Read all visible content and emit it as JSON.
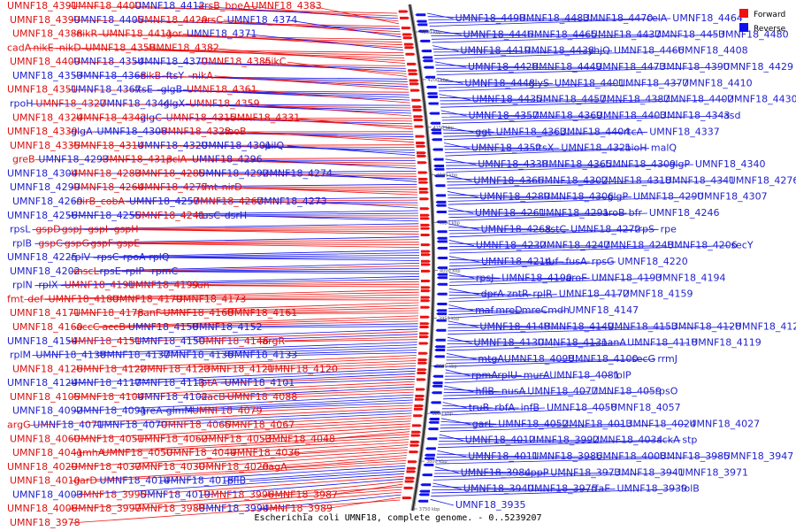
{
  "caption": "Escherichia coli UMNF18, complete genome. - 0..5239207",
  "legend": {
    "forward_label": "Forward",
    "reverse_label": "Reverse",
    "forward_color": "#ee1111",
    "reverse_color": "#1111ee"
  },
  "ticks": [
    "4250 kbp",
    "4200 kbp",
    "4150 kbp",
    "4100 kbp",
    "4050 kbp",
    "4000 kbp",
    "3950 kbp",
    "3900 kbp",
    "3850 kbp",
    "3800 kbp",
    "3750 kbp"
  ],
  "left_labels": [
    {
      "t": "UMNF18_4391",
      "s": "f"
    },
    {
      "t": "UMNF18_4400",
      "s": "f"
    },
    {
      "t": "UMNF18_4412",
      "s": "r"
    },
    {
      "t": "arsB_bpeA",
      "s": "f"
    },
    {
      "t": "UMNF18_4383",
      "s": "f"
    },
    {
      "t": "UMNF18_4399",
      "s": "f"
    },
    {
      "t": "UMNF18_4405",
      "s": "r"
    },
    {
      "t": "UMNF18_4420",
      "s": "f"
    },
    {
      "t": "arsC",
      "s": "f"
    },
    {
      "t": "UMNF18_4374",
      "s": "r"
    },
    {
      "t": "UMNF18_4388",
      "s": "f"
    },
    {
      "t": "nikR",
      "s": "f"
    },
    {
      "t": "UMNF18_4411",
      "s": "f"
    },
    {
      "t": "gor",
      "s": "f"
    },
    {
      "t": "UMNF18_4371",
      "s": "r"
    },
    {
      "t": "cadA",
      "s": "f"
    },
    {
      "t": "nikE",
      "s": "f"
    },
    {
      "t": "nikD",
      "s": "f"
    },
    {
      "t": "UMNF18_4358",
      "s": "f"
    },
    {
      "t": "UMNF18_4382",
      "s": "f"
    },
    {
      "t": "UMNF18_4409",
      "s": "f"
    },
    {
      "t": "UMNF18_4354",
      "s": "r"
    },
    {
      "t": "UMNF18_4370",
      "s": "r"
    },
    {
      "t": "UMNF18_4385",
      "s": "f"
    },
    {
      "t": "nikC",
      "s": "f"
    },
    {
      "t": "UMNF18_4353",
      "s": "r"
    },
    {
      "t": "UMNF18_4368",
      "s": "r"
    },
    {
      "t": "nikB",
      "s": "f"
    },
    {
      "t": "ftsY",
      "s": "r"
    },
    {
      "t": "nikA",
      "s": "f"
    },
    {
      "t": "UMNF18_4351",
      "s": "f"
    },
    {
      "t": "UMNF18_4367",
      "s": "r"
    },
    {
      "t": "ftsE",
      "s": "r"
    },
    {
      "t": "glgB",
      "s": "r"
    },
    {
      "t": "UMNF18_4361",
      "s": "f"
    },
    {
      "t": "rpoH",
      "s": "r"
    },
    {
      "t": "UMNF18_4327",
      "s": "f"
    },
    {
      "t": "UMNF18_4344",
      "s": "r"
    },
    {
      "t": "glgX",
      "s": "r"
    },
    {
      "t": "UMNF18_4359",
      "s": "f"
    },
    {
      "t": "UMNF18_4324",
      "s": "f"
    },
    {
      "t": "UMNF18_4342",
      "s": "f"
    },
    {
      "t": "glgC",
      "s": "r"
    },
    {
      "t": "UMNF18_4315",
      "s": "f"
    },
    {
      "t": "UMNF18_4331",
      "s": "f"
    },
    {
      "t": "UMNF18_4339",
      "s": "f"
    },
    {
      "t": "glgA",
      "s": "r"
    },
    {
      "t": "UMNF18_4308",
      "s": "r"
    },
    {
      "t": "UMNF18_4323",
      "s": "f"
    },
    {
      "t": "feoB",
      "s": "f"
    },
    {
      "t": "UMNF18_4335",
      "s": "f"
    },
    {
      "t": "UMNF18_4314",
      "s": "f"
    },
    {
      "t": "UMNF18_4320",
      "s": "r"
    },
    {
      "t": "UMNF18_4301",
      "s": "r"
    },
    {
      "t": "pilQ",
      "s": "r"
    },
    {
      "t": "greB",
      "s": "f"
    },
    {
      "t": "UMNF18_4293",
      "s": "r"
    },
    {
      "t": "UMNF18_4313",
      "s": "f"
    },
    {
      "t": "pclA",
      "s": "f"
    },
    {
      "t": "UMNF18_4296",
      "s": "r"
    },
    {
      "t": "UMNF18_4304",
      "s": "r"
    },
    {
      "t": "UMNF18_4283",
      "s": "f"
    },
    {
      "t": "UMNF18_4285",
      "s": "f"
    },
    {
      "t": "UMNF18_4292",
      "s": "r"
    },
    {
      "t": "UMNF18_4274",
      "s": "r"
    },
    {
      "t": "UMNF18_4299",
      "s": "r"
    },
    {
      "t": "UMNF18_4264",
      "s": "f"
    },
    {
      "t": "UMNF18_4277",
      "s": "f"
    },
    {
      "t": "fmt",
      "s": "f"
    },
    {
      "t": "nirD",
      "s": "f"
    },
    {
      "t": "UMNF18_4269",
      "s": "r"
    },
    {
      "t": "nirB_cobA",
      "s": "f"
    },
    {
      "t": "UMNF18_4257",
      "s": "r"
    },
    {
      "t": "UMNF18_4267",
      "s": "f"
    },
    {
      "t": "UMNF18_4273",
      "s": "r"
    },
    {
      "t": "UMNF18_4256",
      "s": "r"
    },
    {
      "t": "UMNF18_4255",
      "s": "r"
    },
    {
      "t": "UMNF18_4241",
      "s": "f"
    },
    {
      "t": "tusC",
      "s": "r"
    },
    {
      "t": "dsrH",
      "s": "r"
    },
    {
      "t": "rpsL",
      "s": "r"
    },
    {
      "t": "gspD",
      "s": "f"
    },
    {
      "t": "gspJ",
      "s": "f"
    },
    {
      "t": "gspI",
      "s": "f"
    },
    {
      "t": "gspH",
      "s": "f"
    },
    {
      "t": "rplB",
      "s": "r"
    },
    {
      "t": "gspC",
      "s": "f"
    },
    {
      "t": "gspG",
      "s": "f"
    },
    {
      "t": "gspF",
      "s": "f"
    },
    {
      "t": "gspE",
      "s": "f"
    },
    {
      "t": "UMNF18_4225",
      "s": "r"
    },
    {
      "t": "rplV",
      "s": "r"
    },
    {
      "t": "rpsC",
      "s": "r"
    },
    {
      "t": "rpoA",
      "s": "r"
    },
    {
      "t": "rplQ",
      "s": "r"
    },
    {
      "t": "UMNF18_4202",
      "s": "r"
    },
    {
      "t": "mscL",
      "s": "f"
    },
    {
      "t": "rpsE",
      "s": "r"
    },
    {
      "t": "rplP",
      "s": "r"
    },
    {
      "t": "rpmC",
      "s": "r"
    },
    {
      "t": "rplN",
      "s": "r"
    },
    {
      "t": "rplX",
      "s": "r"
    },
    {
      "t": "UMNF18_4191",
      "s": "f"
    },
    {
      "t": "UMNF18_4199",
      "s": "f"
    },
    {
      "t": "sun",
      "s": "f"
    },
    {
      "t": "fmt",
      "s": "f"
    },
    {
      "t": "def",
      "s": "f"
    },
    {
      "t": "UMNF18_4180",
      "s": "f"
    },
    {
      "t": "UMNF18_4179",
      "s": "f"
    },
    {
      "t": "UMNF18_4173",
      "s": "f"
    },
    {
      "t": "UMNF18_4171",
      "s": "f"
    },
    {
      "t": "UMNF18_4178",
      "s": "f"
    },
    {
      "t": "panF",
      "s": "f"
    },
    {
      "t": "UMNF18_4168",
      "s": "f"
    },
    {
      "t": "UMNF18_4161",
      "s": "f"
    },
    {
      "t": "UMNF18_4160",
      "s": "f"
    },
    {
      "t": "accC",
      "s": "f"
    },
    {
      "t": "accB",
      "s": "f"
    },
    {
      "t": "UMNF18_4158",
      "s": "r"
    },
    {
      "t": "UMNF18_4152",
      "s": "r"
    },
    {
      "t": "UMNF18_4154",
      "s": "r"
    },
    {
      "t": "UMNF18_4151",
      "s": "f"
    },
    {
      "t": "UMNF18_4150",
      "s": "r"
    },
    {
      "t": "UMNF18_4146",
      "s": "f"
    },
    {
      "t": "argR",
      "s": "f"
    },
    {
      "t": "rplM",
      "s": "r"
    },
    {
      "t": "UMNF18_4138",
      "s": "r"
    },
    {
      "t": "UMNF18_4137",
      "s": "r"
    },
    {
      "t": "UMNF18_4136",
      "s": "r"
    },
    {
      "t": "UMNF18_4133",
      "s": "r"
    },
    {
      "t": "UMNF18_4126",
      "s": "f"
    },
    {
      "t": "UMNF18_4122",
      "s": "f"
    },
    {
      "t": "UMNF18_4123",
      "s": "f"
    },
    {
      "t": "UMNF18_4121",
      "s": "f"
    },
    {
      "t": "UMNF18_4120",
      "s": "f"
    },
    {
      "t": "UMNF18_4124",
      "s": "r"
    },
    {
      "t": "UMNF18_4117",
      "s": "r"
    },
    {
      "t": "UMNF18_4113",
      "s": "r"
    },
    {
      "t": "lptA",
      "s": "f"
    },
    {
      "t": "UMNF18_4101",
      "s": "r"
    },
    {
      "t": "UMNF18_4105",
      "s": "f"
    },
    {
      "t": "UMNF18_4104",
      "s": "f"
    },
    {
      "t": "UMNF18_4102",
      "s": "r"
    },
    {
      "t": "dacB",
      "s": "f"
    },
    {
      "t": "UMNF18_4088",
      "s": "f"
    },
    {
      "t": "UMNF18_4092",
      "s": "r"
    },
    {
      "t": "UMNF18_4091",
      "s": "r"
    },
    {
      "t": "greA",
      "s": "r"
    },
    {
      "t": "glmM",
      "s": "r"
    },
    {
      "t": "UMNF18_4079",
      "s": "f"
    },
    {
      "t": "argG",
      "s": "f"
    },
    {
      "t": "UMNF18_4071",
      "s": "r"
    },
    {
      "t": "UMNF18_4070",
      "s": "r"
    },
    {
      "t": "UMNF18_4065",
      "s": "f"
    },
    {
      "t": "UMNF18_4067",
      "s": "f"
    },
    {
      "t": "UMNF18_4060",
      "s": "f"
    },
    {
      "t": "UMNF18_4051",
      "s": "f"
    },
    {
      "t": "UMNF18_4062",
      "s": "f"
    },
    {
      "t": "UMNF18_4053",
      "s": "f"
    },
    {
      "t": "UMNF18_4048",
      "s": "f"
    },
    {
      "t": "UMNF18_4041",
      "s": "f"
    },
    {
      "t": "gmhA",
      "s": "f"
    },
    {
      "t": "UMNF18_4050",
      "s": "f"
    },
    {
      "t": "UMNF18_4044",
      "s": "f"
    },
    {
      "t": "UMNF18_4036",
      "s": "f"
    },
    {
      "t": "UMNF18_4029",
      "s": "f"
    },
    {
      "t": "UMNF18_4037",
      "s": "f"
    },
    {
      "t": "UMNF18_4030",
      "s": "f"
    },
    {
      "t": "UMNF18_4020",
      "s": "f"
    },
    {
      "t": "nagA",
      "s": "f"
    },
    {
      "t": "UMNF18_4010",
      "s": "f"
    },
    {
      "t": "garD",
      "s": "f"
    },
    {
      "t": "UMNF18_4014",
      "s": "r"
    },
    {
      "t": "UMNF18_4018",
      "s": "r"
    },
    {
      "t": "pflB",
      "s": "r"
    },
    {
      "t": "UMNF18_4003",
      "s": "r"
    },
    {
      "t": "UMNF18_3995",
      "s": "f"
    },
    {
      "t": "UMNF18_4019",
      "s": "r"
    },
    {
      "t": "UMNF18_3996",
      "s": "f"
    },
    {
      "t": "UMNF18_3987",
      "s": "f"
    },
    {
      "t": "UMNF18_4006",
      "s": "f"
    },
    {
      "t": "UMNF18_3997",
      "s": "f"
    },
    {
      "t": "UMNF18_3988",
      "s": "f"
    },
    {
      "t": "UMNF18_3994",
      "s": "r"
    },
    {
      "t": "UMNF18_3989",
      "s": "f"
    },
    {
      "t": "UMNF18_3978",
      "s": "f"
    }
  ],
  "right_labels": [
    {
      "t": "UMNF18_4498",
      "s": "r"
    },
    {
      "t": "UMNF18_4483",
      "s": "r"
    },
    {
      "t": "UMNF18_4470",
      "s": "r"
    },
    {
      "t": "celA",
      "s": "r"
    },
    {
      "t": "UMNF18_4464",
      "s": "r"
    },
    {
      "t": "UMNF18_4446",
      "s": "r"
    },
    {
      "t": "UMNF18_4465",
      "s": "r"
    },
    {
      "t": "UMNF18_4437",
      "s": "r"
    },
    {
      "t": "UMNF18_4453",
      "s": "r"
    },
    {
      "t": "UMNF18_4480",
      "s": "r"
    },
    {
      "t": "UMNF18_4419",
      "s": "r"
    },
    {
      "t": "UMNF18_4438",
      "s": "r"
    },
    {
      "t": "yhjQ",
      "s": "r"
    },
    {
      "t": "UMNF18_4466",
      "s": "r"
    },
    {
      "t": "UMNF18_4408",
      "s": "r"
    },
    {
      "t": "UMNF18_4428",
      "s": "r"
    },
    {
      "t": "UMNF18_4449",
      "s": "r"
    },
    {
      "t": "UMNF18_4473",
      "s": "r"
    },
    {
      "t": "UMNF18_4390",
      "s": "r"
    },
    {
      "t": "UMNF18_4429",
      "s": "r"
    },
    {
      "t": "UMNF18_4448",
      "s": "r"
    },
    {
      "t": "glyS",
      "s": "r"
    },
    {
      "t": "UMNF18_4401",
      "s": "r"
    },
    {
      "t": "UMNF18_4377",
      "s": "r"
    },
    {
      "t": "UMNF18_4410",
      "s": "r"
    },
    {
      "t": "UMNF18_4435",
      "s": "r"
    },
    {
      "t": "UMNF18_4457",
      "s": "r"
    },
    {
      "t": "UMNF18_4387",
      "s": "r"
    },
    {
      "t": "UMNF18_4402",
      "s": "r"
    },
    {
      "t": "UMNF18_4430",
      "s": "r"
    },
    {
      "t": "UMNF18_4357",
      "s": "r"
    },
    {
      "t": "UMNF18_4369",
      "s": "r"
    },
    {
      "t": "UMNF18_4403",
      "s": "r"
    },
    {
      "t": "UMNF18_4343",
      "s": "r"
    },
    {
      "t": "asd",
      "s": "r"
    },
    {
      "t": "ggt",
      "s": "r"
    },
    {
      "t": "UMNF18_4363",
      "s": "r"
    },
    {
      "t": "UMNF18_4404",
      "s": "r"
    },
    {
      "t": "rtcA",
      "s": "r"
    },
    {
      "t": "UMNF18_4337",
      "s": "r"
    },
    {
      "t": "UMNF18_4352",
      "s": "r"
    },
    {
      "t": "ftsX",
      "s": "r"
    },
    {
      "t": "UMNF18_4321",
      "s": "r"
    },
    {
      "t": "bioH",
      "s": "r"
    },
    {
      "t": "malQ",
      "s": "r"
    },
    {
      "t": "UMNF18_4338",
      "s": "r"
    },
    {
      "t": "UMNF18_4365",
      "s": "r"
    },
    {
      "t": "UMNF18_4309",
      "s": "r"
    },
    {
      "t": "glgP",
      "s": "r"
    },
    {
      "t": "UMNF18_4340",
      "s": "r"
    },
    {
      "t": "UMNF18_4366",
      "s": "r"
    },
    {
      "t": "UMNF18_4302",
      "s": "r"
    },
    {
      "t": "UMNF18_4318",
      "s": "r"
    },
    {
      "t": "UMNF18_4341",
      "s": "r"
    },
    {
      "t": "UMNF18_4276",
      "s": "r"
    },
    {
      "t": "UMNF18_4289",
      "s": "r"
    },
    {
      "t": "UMNF18_4306",
      "s": "r"
    },
    {
      "t": "glgP",
      "s": "r"
    },
    {
      "t": "UMNF18_4290",
      "s": "r"
    },
    {
      "t": "UMNF18_4307",
      "s": "r"
    },
    {
      "t": "UMNF18_4261",
      "s": "r"
    },
    {
      "t": "UMNF18_4291",
      "s": "r"
    },
    {
      "t": "aroB",
      "s": "r"
    },
    {
      "t": "bfr",
      "s": "r"
    },
    {
      "t": "UMNF18_4246",
      "s": "r"
    },
    {
      "t": "UMNF18_4268",
      "s": "r"
    },
    {
      "t": "astC",
      "s": "r"
    },
    {
      "t": "UMNF18_4272",
      "s": "r"
    },
    {
      "t": "trpS",
      "s": "r"
    },
    {
      "t": "rpe",
      "s": "r"
    },
    {
      "t": "UMNF18_4232",
      "s": "r"
    },
    {
      "t": "UMNF18_4247",
      "s": "r"
    },
    {
      "t": "UMNF18_4248",
      "s": "r"
    },
    {
      "t": "UMNF18_4206",
      "s": "r"
    },
    {
      "t": "secY",
      "s": "r"
    },
    {
      "t": "UMNF18_4214",
      "s": "r"
    },
    {
      "t": "tuf",
      "s": "r"
    },
    {
      "t": "fusA",
      "s": "r"
    },
    {
      "t": "rpsG",
      "s": "r"
    },
    {
      "t": "UMNF18_4220",
      "s": "r"
    },
    {
      "t": "rpsJ",
      "s": "r"
    },
    {
      "t": "UMNF18_4190",
      "s": "r"
    },
    {
      "t": "aroE",
      "s": "r"
    },
    {
      "t": "UMNF18_4193",
      "s": "r"
    },
    {
      "t": "UMNF18_4194",
      "s": "r"
    },
    {
      "t": "dprA",
      "s": "r"
    },
    {
      "t": "zntR",
      "s": "r"
    },
    {
      "t": "rplR",
      "s": "r"
    },
    {
      "t": "UMNF18_4172",
      "s": "r"
    },
    {
      "t": "UMNF18_4159",
      "s": "r"
    },
    {
      "t": "maf",
      "s": "r"
    },
    {
      "t": "mreD",
      "s": "r"
    },
    {
      "t": "mreC",
      "s": "r"
    },
    {
      "t": "mdh",
      "s": "r"
    },
    {
      "t": "UMNF18_4147",
      "s": "r"
    },
    {
      "t": "UMNF18_4148",
      "s": "r"
    },
    {
      "t": "UMNF18_4149",
      "s": "r"
    },
    {
      "t": "UMNF18_4153",
      "s": "r"
    },
    {
      "t": "UMNF18_4128",
      "s": "r"
    },
    {
      "t": "UMNF18_4129",
      "s": "r"
    },
    {
      "t": "UMNF18_4130",
      "s": "r"
    },
    {
      "t": "UMNF18_4131",
      "s": "r"
    },
    {
      "t": "nanA",
      "s": "r"
    },
    {
      "t": "UMNF18_4118",
      "s": "r"
    },
    {
      "t": "UMNF18_4119",
      "s": "r"
    },
    {
      "t": "mtgA",
      "s": "r"
    },
    {
      "t": "UMNF18_4098",
      "s": "r"
    },
    {
      "t": "UMNF18_4100",
      "s": "r"
    },
    {
      "t": "secG",
      "s": "r"
    },
    {
      "t": "rrmJ",
      "s": "r"
    },
    {
      "t": "rpmA",
      "s": "r"
    },
    {
      "t": "rplU",
      "s": "r"
    },
    {
      "t": "murA",
      "s": "r"
    },
    {
      "t": "UMNF18_4081",
      "s": "r"
    },
    {
      "t": "folP",
      "s": "r"
    },
    {
      "t": "hflB",
      "s": "r"
    },
    {
      "t": "nusA",
      "s": "r"
    },
    {
      "t": "UMNF18_4077",
      "s": "r"
    },
    {
      "t": "UMNF18_4059",
      "s": "r"
    },
    {
      "t": "rpsO",
      "s": "r"
    },
    {
      "t": "truB",
      "s": "r"
    },
    {
      "t": "rbfA",
      "s": "r"
    },
    {
      "t": "infB",
      "s": "r"
    },
    {
      "t": "UMNF18_4058",
      "s": "r"
    },
    {
      "t": "UMNF18_4057",
      "s": "r"
    },
    {
      "t": "garL",
      "s": "r"
    },
    {
      "t": "UMNF18_4052",
      "s": "r"
    },
    {
      "t": "UMNF18_4013",
      "s": "r"
    },
    {
      "t": "UMNF18_4024",
      "s": "r"
    },
    {
      "t": "UMNF18_4027",
      "s": "r"
    },
    {
      "t": "UMNF18_4012",
      "s": "r"
    },
    {
      "t": "UMNF18_3992",
      "s": "r"
    },
    {
      "t": "UMNF18_4034",
      "s": "r"
    },
    {
      "t": "ackA",
      "s": "r"
    },
    {
      "t": "stp",
      "s": "r"
    },
    {
      "t": "UMNF18_4011",
      "s": "r"
    },
    {
      "t": "UMNF18_3986",
      "s": "r"
    },
    {
      "t": "UMNF18_4008",
      "s": "r"
    },
    {
      "t": "UMNF18_3985",
      "s": "r"
    },
    {
      "t": "UMNF18_3947",
      "s": "r"
    },
    {
      "t": "UMNF18_3984",
      "s": "r"
    },
    {
      "t": "uppP",
      "s": "r"
    },
    {
      "t": "UMNF18_3973",
      "s": "r"
    },
    {
      "t": "UMNF18_3941",
      "s": "r"
    },
    {
      "t": "UMNF18_3971",
      "s": "r"
    },
    {
      "t": "UMNF18_3940",
      "s": "r"
    },
    {
      "t": "UMNF18_3975",
      "s": "r"
    },
    {
      "t": "rfaE",
      "s": "r"
    },
    {
      "t": "UMNF18_3939",
      "s": "r"
    },
    {
      "t": "folB",
      "s": "r"
    },
    {
      "t": "UMNF18_3935",
      "s": "r"
    }
  ]
}
